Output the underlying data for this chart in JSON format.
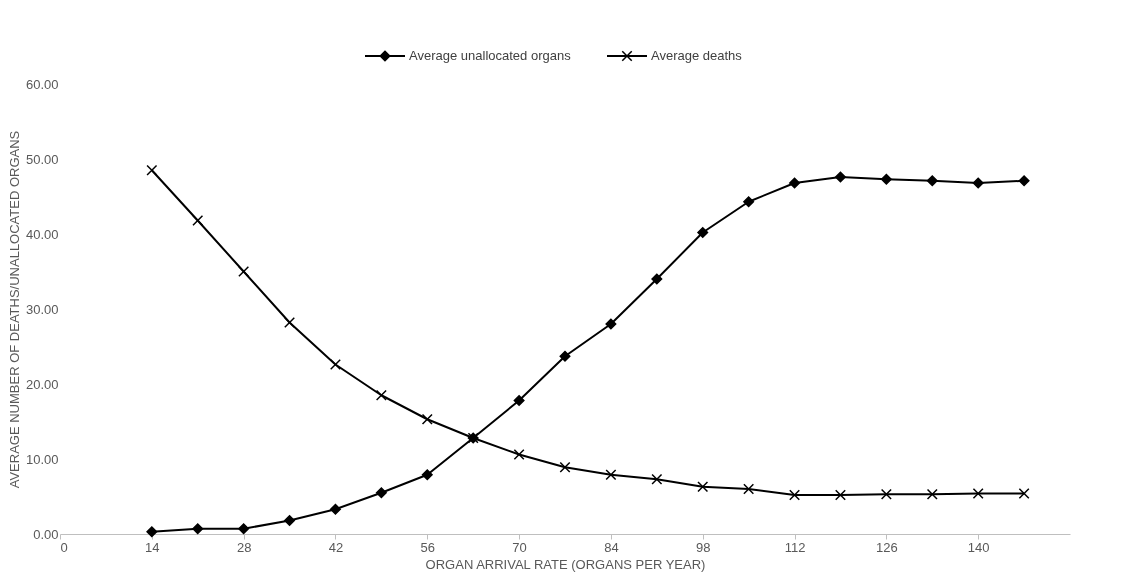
{
  "chart_data": {
    "type": "line",
    "xlabel": "ORGAN ARRIVAL RATE (ORGANS PER YEAR)",
    "ylabel": "AVERAGE NUMBER OF DEATHS/UNALLOCATED ORGANS",
    "x": [
      14,
      21,
      28,
      35,
      42,
      49,
      56,
      63,
      70,
      77,
      84,
      91,
      98,
      105,
      112,
      119,
      126,
      133,
      140,
      147
    ],
    "series": [
      {
        "name": "Average unallocated organs",
        "color": "#000000",
        "marker": "diamond",
        "values": [
          0.3,
          0.7,
          0.7,
          1.8,
          3.3,
          5.5,
          7.9,
          12.8,
          17.8,
          23.7,
          28.0,
          34.0,
          40.2,
          44.3,
          46.8,
          47.6,
          47.3,
          47.1,
          46.8,
          47.1
        ]
      },
      {
        "name": "Average deaths",
        "color": "#000000",
        "marker": "cross",
        "values": [
          48.5,
          41.8,
          35.0,
          28.2,
          22.6,
          18.5,
          15.3,
          12.8,
          10.6,
          8.9,
          7.9,
          7.3,
          6.3,
          6.0,
          5.2,
          5.2,
          5.3,
          5.3,
          5.4,
          5.4
        ]
      }
    ],
    "xlim": [
      0,
      154
    ],
    "xticks": [
      0,
      14,
      28,
      42,
      56,
      70,
      84,
      98,
      112,
      126,
      140
    ],
    "ylim": [
      0,
      60
    ],
    "yticks": [
      {
        "value": 0,
        "label": "0.00"
      },
      {
        "value": 10,
        "label": "10.00"
      },
      {
        "value": 20,
        "label": "20.00"
      },
      {
        "value": 30,
        "label": "30.00"
      },
      {
        "value": 40,
        "label": "40.00"
      },
      {
        "value": 50,
        "label": "50.00"
      },
      {
        "value": 60,
        "label": "60.00"
      }
    ],
    "grid": false,
    "legend": "top",
    "line_style": "solid"
  }
}
